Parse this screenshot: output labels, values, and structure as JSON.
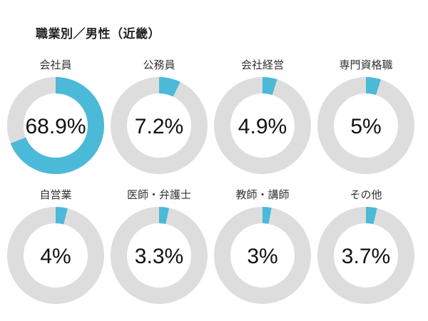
{
  "title": "職業別／男性（近畿）",
  "colors": {
    "accent": "#4bb9d8",
    "track": "#dddddd"
  },
  "chart_data": {
    "type": "pie",
    "subtype": "donut-grid",
    "title": "職業別／男性（近畿）",
    "unit": "%",
    "items": [
      {
        "label": "会社員",
        "value": 68.9,
        "display": "68.9%"
      },
      {
        "label": "公務員",
        "value": 7.2,
        "display": "7.2%"
      },
      {
        "label": "会社経営",
        "value": 4.9,
        "display": "4.9%"
      },
      {
        "label": "専門資格職",
        "value": 5,
        "display": "5%"
      },
      {
        "label": "自営業",
        "value": 4,
        "display": "4%"
      },
      {
        "label": "医師・弁護士",
        "value": 3.3,
        "display": "3.3%"
      },
      {
        "label": "教師・講師",
        "value": 3,
        "display": "3%"
      },
      {
        "label": "その他",
        "value": 3.7,
        "display": "3.7%"
      }
    ]
  }
}
